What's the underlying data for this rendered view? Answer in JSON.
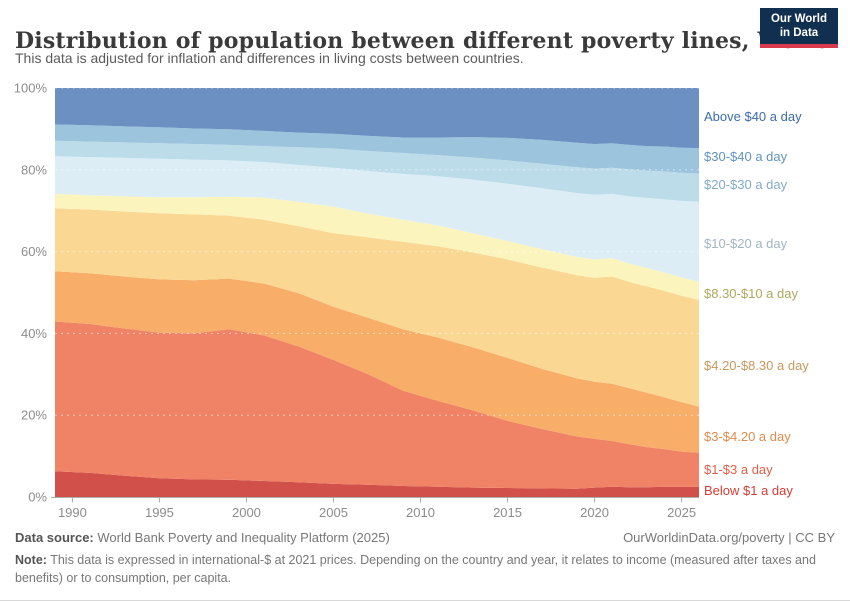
{
  "header": {
    "title": "Distribution of population between different poverty lines, World",
    "subtitle": "This data is adjusted for inflation and differences in living costs between countries.",
    "logo": {
      "line1": "Our World",
      "line2": "in Data",
      "bg_color": "#11304f",
      "bar_color": "#d93a4d"
    }
  },
  "chart_data": {
    "type": "area",
    "stacked": true,
    "title": "Distribution of population between different poverty lines, World",
    "xlabel": "",
    "ylabel": "",
    "unit": "%",
    "grid": "dashed-horizontal",
    "legend_position": "right",
    "xlim": [
      1989,
      2026
    ],
    "ylim": [
      0,
      100
    ],
    "x": [
      1989,
      1991,
      1993,
      1995,
      1997,
      1999,
      2001,
      2003,
      2005,
      2007,
      2009,
      2011,
      2013,
      2015,
      2017,
      2019,
      2020,
      2021,
      2022,
      2023,
      2024,
      2025,
      2026
    ],
    "x_ticks": [
      "1990",
      "1995",
      "2000",
      "2005",
      "2010",
      "2015",
      "2020",
      "2025"
    ],
    "x_tick_values": [
      1990,
      1995,
      2000,
      2005,
      2010,
      2015,
      2020,
      2025
    ],
    "y_ticks": [
      {
        "value": 0,
        "label": "0%"
      },
      {
        "value": 20,
        "label": "20%"
      },
      {
        "value": 40,
        "label": "40%"
      },
      {
        "value": 60,
        "label": "60%"
      },
      {
        "value": 80,
        "label": "80%"
      },
      {
        "value": 100,
        "label": "100%"
      }
    ],
    "series": [
      {
        "name": "Below $1 a day",
        "color": "#d2504a",
        "label_color": "#d43d33",
        "label_dy": 0,
        "values": [
          6.3,
          5.9,
          5.2,
          4.6,
          4.3,
          4.2,
          3.9,
          3.6,
          3.2,
          3.0,
          2.7,
          2.5,
          2.3,
          2.2,
          2.1,
          2.0,
          2.3,
          2.5,
          2.4,
          2.4,
          2.5,
          2.5,
          2.5
        ]
      },
      {
        "name": "$1-$3 a day",
        "color": "#f08366",
        "label_color": "#e25f47",
        "label_dy": 1,
        "values": [
          36.6,
          36.4,
          36.0,
          35.6,
          35.7,
          36.8,
          35.6,
          33.2,
          30.3,
          27.0,
          23.3,
          21.0,
          18.9,
          16.4,
          14.5,
          12.8,
          11.9,
          11.2,
          10.5,
          9.8,
          9.2,
          8.6,
          8.3
        ]
      },
      {
        "name": "$3-$4.20 a day",
        "color": "#f8ad69",
        "label_color": "#dd8c4e",
        "label_dy": 8,
        "values": [
          12.3,
          12.4,
          12.7,
          13.0,
          13.0,
          12.4,
          12.7,
          13.0,
          13.0,
          13.8,
          15.0,
          15.5,
          15.4,
          15.4,
          14.7,
          14.2,
          14.0,
          14.0,
          13.7,
          13.3,
          12.7,
          12.1,
          11.3
        ]
      },
      {
        "name": "$4.20-$8.30 a day",
        "color": "#fbd794",
        "label_color": "#c8985e",
        "label_dy": 14,
        "values": [
          15.4,
          15.6,
          15.9,
          16.2,
          16.1,
          15.4,
          15.6,
          16.4,
          18.0,
          19.7,
          21.4,
          22.3,
          23.2,
          24.1,
          24.8,
          25.2,
          25.4,
          26.2,
          26.0,
          26.0,
          26.0,
          26.0,
          26.1
        ]
      },
      {
        "name": "$8.30-$10 a day",
        "color": "#fbf5bd",
        "label_color": "#aea75e",
        "label_dy": 4,
        "values": [
          3.5,
          3.5,
          3.7,
          3.9,
          4.2,
          4.6,
          5.4,
          6.0,
          6.5,
          5.8,
          5.4,
          5.1,
          4.7,
          4.5,
          4.5,
          4.5,
          4.5,
          4.5,
          4.5,
          4.5,
          4.5,
          4.5,
          4.4
        ]
      },
      {
        "name": "$10-$20 a day",
        "color": "#ddedf6",
        "label_color": "#a2b6c0",
        "label_dy": 3,
        "values": [
          9.2,
          9.3,
          9.4,
          9.4,
          9.2,
          8.9,
          8.7,
          9.0,
          9.5,
          10.4,
          11.2,
          12.0,
          13.1,
          14.0,
          14.9,
          15.6,
          15.8,
          15.7,
          16.4,
          17.1,
          17.9,
          18.7,
          19.6
        ]
      },
      {
        "name": "$20-$30 a day",
        "color": "#bcdcea",
        "label_color": "#84abc5",
        "label_dy": -2,
        "values": [
          3.8,
          3.8,
          3.8,
          3.8,
          3.8,
          3.8,
          3.9,
          4.3,
          4.7,
          4.9,
          5.1,
          5.2,
          5.4,
          5.7,
          6.0,
          6.3,
          6.4,
          6.4,
          6.6,
          6.7,
          6.8,
          6.9,
          6.9
        ]
      },
      {
        "name": "$30-$40 a day",
        "color": "#9cc4dc",
        "label_color": "#6093c0",
        "label_dy": -3,
        "values": [
          4.0,
          4.0,
          3.9,
          3.9,
          3.8,
          3.8,
          3.7,
          3.6,
          3.6,
          3.7,
          3.8,
          4.3,
          5.0,
          5.5,
          5.8,
          6.0,
          6.0,
          6.0,
          6.0,
          6.0,
          6.1,
          6.1,
          6.2
        ]
      },
      {
        "name": "Above $40 a day",
        "color": "#6c90c2",
        "label_color": "#3d6ba8",
        "label_dy": 0,
        "values": [
          8.9,
          9.1,
          9.4,
          9.6,
          9.9,
          10.1,
          10.5,
          10.9,
          11.2,
          11.7,
          12.1,
          12.1,
          12.0,
          12.3,
          12.8,
          13.4,
          13.7,
          13.5,
          13.9,
          14.2,
          14.4,
          14.6,
          14.7
        ]
      }
    ]
  },
  "footer": {
    "datasource_label": "Data source:",
    "datasource_text": " World Bank Poverty and Inequality Platform (2025)",
    "link_text": "OurWorldinData.org/poverty | CC BY",
    "note_label": "Note:",
    "note_text": " This data is expressed in international-$ at 2021 prices. Depending on the country and year, it relates to income (measured after taxes and benefits) or to consumption, per capita."
  }
}
